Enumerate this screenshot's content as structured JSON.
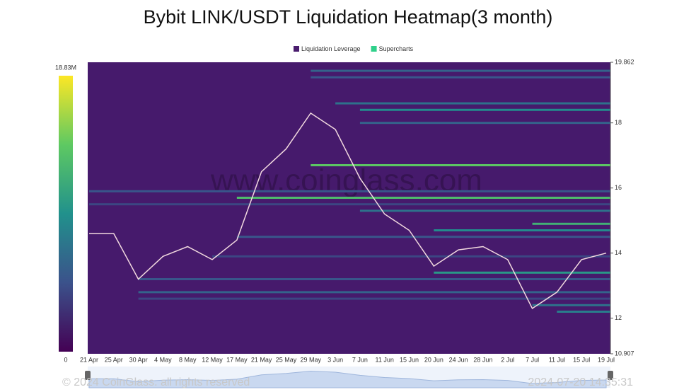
{
  "chart_data": {
    "type": "heatmap",
    "title": "Bybit LINK/USDT Liquidation Heatmap(3 month)",
    "legend": [
      {
        "name": "Liquidation Leverage",
        "color": "#4a1d6e"
      },
      {
        "name": "Supercharts",
        "color": "#2fd08a"
      }
    ],
    "categories": [
      "21 Apr",
      "25 Apr",
      "30 Apr",
      "4 May",
      "8 May",
      "12 May",
      "17 May",
      "21 May",
      "25 May",
      "29 May",
      "3 Jun",
      "7 Jun",
      "11 Jun",
      "15 Jun",
      "20 Jun",
      "24 Jun",
      "28 Jun",
      "2 Jul",
      "7 Jul",
      "11 Jul",
      "15 Jul",
      "19 Jul"
    ],
    "price": {
      "color": "#f2d9df",
      "values": [
        14.6,
        14.6,
        13.2,
        13.9,
        14.2,
        13.8,
        14.4,
        16.5,
        17.2,
        18.3,
        17.8,
        16.3,
        15.2,
        14.7,
        13.6,
        14.1,
        14.2,
        13.8,
        12.3,
        12.8,
        13.8,
        14.0
      ]
    },
    "bands": [
      {
        "price": 19.6,
        "from": "29 May",
        "value": 6000000
      },
      {
        "price": 19.4,
        "from": "29 May",
        "value": 5000000
      },
      {
        "price": 18.6,
        "from": "3 Jun",
        "value": 7000000
      },
      {
        "price": 18.4,
        "from": "7 Jun",
        "value": 9000000
      },
      {
        "price": 18.0,
        "from": "7 Jun",
        "value": 6000000
      },
      {
        "price": 16.7,
        "from": "29 May",
        "value": 14000000
      },
      {
        "price": 15.9,
        "from": "21 Apr",
        "value": 5000000
      },
      {
        "price": 15.7,
        "from": "17 May",
        "value": 13000000
      },
      {
        "price": 15.5,
        "from": "21 Apr",
        "value": 4000000
      },
      {
        "price": 15.3,
        "from": "7 Jun",
        "value": 7000000
      },
      {
        "price": 14.9,
        "from": "7 Jul",
        "value": 12000000
      },
      {
        "price": 14.7,
        "from": "20 Jun",
        "value": 9000000
      },
      {
        "price": 14.5,
        "from": "17 May",
        "value": 5000000
      },
      {
        "price": 13.9,
        "from": "12 May",
        "value": 4000000
      },
      {
        "price": 13.4,
        "from": "20 Jun",
        "value": 10000000
      },
      {
        "price": 13.2,
        "from": "30 Apr",
        "value": 5000000
      },
      {
        "price": 12.8,
        "from": "30 Apr",
        "value": 6000000
      },
      {
        "price": 12.6,
        "from": "30 Apr",
        "value": 4000000
      },
      {
        "price": 12.4,
        "from": "7 Jul",
        "value": 7000000
      },
      {
        "price": 12.2,
        "from": "11 Jul",
        "value": 8000000
      }
    ],
    "ylim": [
      10.907,
      19.862
    ],
    "yticks": [
      10.907,
      12,
      14,
      16,
      18,
      19.862
    ],
    "colorbar": {
      "lim": [
        0,
        18830000
      ],
      "ticks": [
        {
          "value": 18830000,
          "label": "18.83M"
        },
        0
      ]
    },
    "watermark": "www.coinglass.com",
    "copyright": "© 2024 CoinGlass. all rights reserved",
    "timestamp": "2024-07-20 14:35:31"
  }
}
